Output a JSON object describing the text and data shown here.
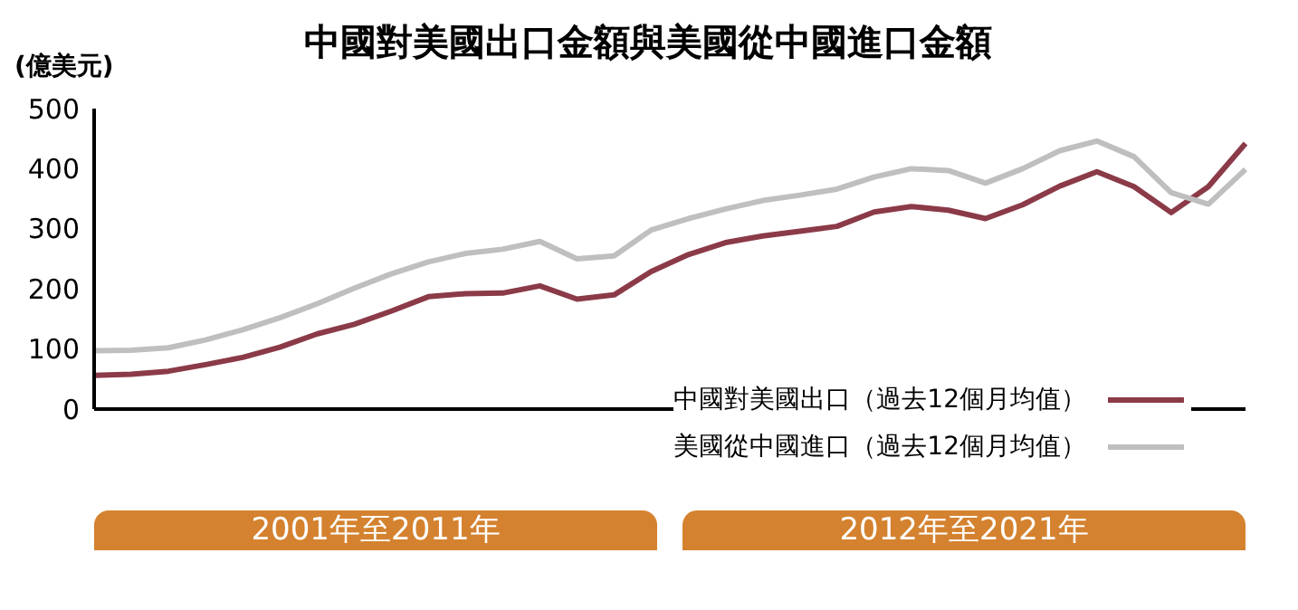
{
  "chart_data": {
    "type": "line",
    "title": "中國對美國出口金額與美國從中國進口金額",
    "ylabel": "(億美元)",
    "categories": [
      null,
      null,
      null,
      null,
      null,
      null,
      null,
      null,
      null,
      null,
      null,
      null,
      null,
      null,
      null,
      null,
      null,
      null,
      null,
      null,
      null,
      null,
      null,
      null,
      null,
      null,
      null,
      null,
      null,
      null,
      null,
      null
    ],
    "series": [
      {
        "name": "中國對美國出口（過去12個月均值）",
        "color": "#8b3a48",
        "values": [
          56,
          58,
          63,
          74,
          86,
          103,
          125,
          141,
          163,
          187,
          192,
          193,
          205,
          183,
          190,
          229,
          257,
          277,
          288,
          296,
          304,
          328,
          337,
          331,
          317,
          340,
          371,
          395,
          370,
          327,
          370,
          442
        ]
      },
      {
        "name": "美國從中國進口（過去12個月均值）",
        "color": "#bfbfbf",
        "values": [
          97,
          98,
          102,
          115,
          132,
          152,
          175,
          201,
          225,
          245,
          259,
          266,
          279,
          250,
          255,
          298,
          317,
          333,
          347,
          356,
          366,
          386,
          400,
          397,
          376,
          400,
          430,
          446,
          420,
          360,
          341,
          399
        ]
      }
    ],
    "ylim": [
      0,
      500
    ],
    "yticks": [
      0,
      100,
      200,
      300,
      400,
      500
    ],
    "legend": "bottom right",
    "marker": "none",
    "line_style": "solid",
    "annotations": [
      "2001年至2011年",
      "2012年至2021年"
    ]
  }
}
